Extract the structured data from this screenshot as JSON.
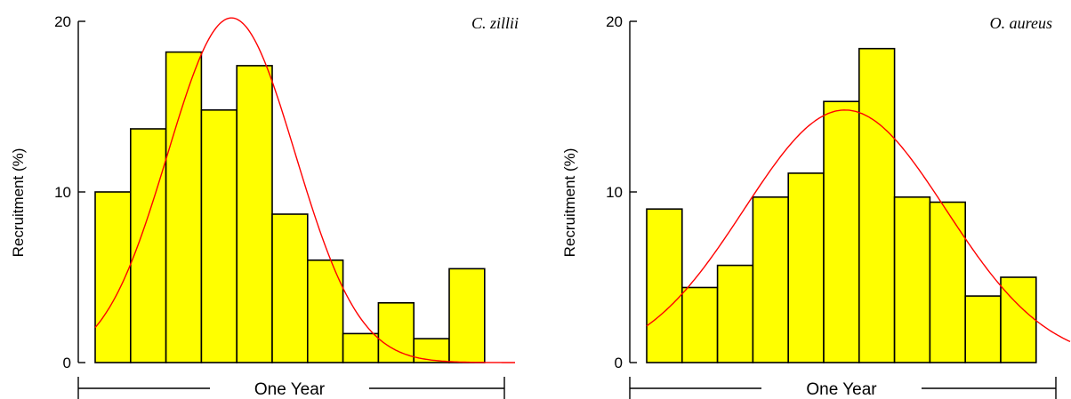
{
  "chart_data": [
    {
      "type": "bar",
      "title": "C. zillii",
      "ylabel": "Recruitment (%)",
      "xlabel": "One Year",
      "ylim": [
        0,
        20
      ],
      "yticks": [
        "0",
        "10",
        "20"
      ],
      "values": [
        10.0,
        13.7,
        18.2,
        14.8,
        17.4,
        8.7,
        6.0,
        1.7,
        3.5,
        1.4,
        5.5
      ],
      "fit_curve": {
        "color": "#ff0000",
        "peak": 20.2,
        "peak_position": 3.85,
        "sigma": 1.8
      },
      "colors": {
        "bar": "#ffff00"
      }
    },
    {
      "type": "bar",
      "title": "O. aureus",
      "ylabel": "Recruitment (%)",
      "xlabel": "One Year",
      "ylim": [
        0,
        20
      ],
      "yticks": [
        "0",
        "10",
        "20"
      ],
      "values": [
        9.0,
        4.4,
        5.7,
        9.7,
        11.1,
        15.3,
        18.4,
        9.7,
        9.4,
        3.9,
        5.0
      ],
      "fit_curve": {
        "color": "#ff0000",
        "peak": 14.8,
        "peak_position": 5.6,
        "sigma": 2.85
      },
      "colors": {
        "bar": "#ffff00"
      }
    }
  ]
}
